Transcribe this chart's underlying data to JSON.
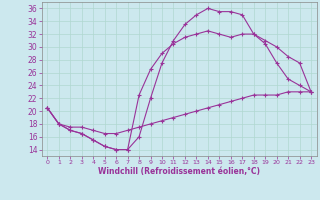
{
  "xlabel": "Windchill (Refroidissement éolien,°C)",
  "bg_color": "#cce8ee",
  "line_color": "#993399",
  "grid_color": "#b0d8d0",
  "xlim": [
    -0.5,
    23.5
  ],
  "ylim": [
    13,
    37
  ],
  "xticks": [
    0,
    1,
    2,
    3,
    4,
    5,
    6,
    7,
    8,
    9,
    10,
    11,
    12,
    13,
    14,
    15,
    16,
    17,
    18,
    19,
    20,
    21,
    22,
    23
  ],
  "yticks": [
    14,
    16,
    18,
    20,
    22,
    24,
    26,
    28,
    30,
    32,
    34,
    36
  ],
  "curve1_x": [
    0,
    1,
    2,
    3,
    4,
    5,
    6,
    7,
    8,
    9,
    10,
    11,
    12,
    13,
    14,
    15,
    16,
    17,
    18,
    19,
    20,
    21,
    22,
    23
  ],
  "curve1_y": [
    20.5,
    18.0,
    17.0,
    16.5,
    15.5,
    14.5,
    14.0,
    14.0,
    16.0,
    22.0,
    27.5,
    31.0,
    33.5,
    35.0,
    36.0,
    35.5,
    35.5,
    35.0,
    32.0,
    30.5,
    27.5,
    25.0,
    24.0,
    23.0
  ],
  "curve2_x": [
    0,
    1,
    2,
    3,
    4,
    5,
    6,
    7,
    8,
    9,
    10,
    11,
    12,
    13,
    14,
    15,
    16,
    17,
    18,
    19,
    20,
    21,
    22,
    23
  ],
  "curve2_y": [
    20.5,
    18.0,
    17.0,
    16.5,
    15.5,
    14.5,
    14.0,
    14.0,
    22.5,
    26.5,
    29.0,
    30.5,
    31.5,
    32.0,
    32.5,
    32.0,
    31.5,
    32.0,
    32.0,
    31.0,
    30.0,
    28.5,
    27.5,
    23.0
  ],
  "curve3_x": [
    0,
    1,
    2,
    3,
    4,
    5,
    6,
    7,
    8,
    9,
    10,
    11,
    12,
    13,
    14,
    15,
    16,
    17,
    18,
    19,
    20,
    21,
    22,
    23
  ],
  "curve3_y": [
    20.5,
    18.0,
    17.5,
    17.5,
    17.0,
    16.5,
    16.5,
    17.0,
    17.5,
    18.0,
    18.5,
    19.0,
    19.5,
    20.0,
    20.5,
    21.0,
    21.5,
    22.0,
    22.5,
    22.5,
    22.5,
    23.0,
    23.0,
    23.0
  ]
}
